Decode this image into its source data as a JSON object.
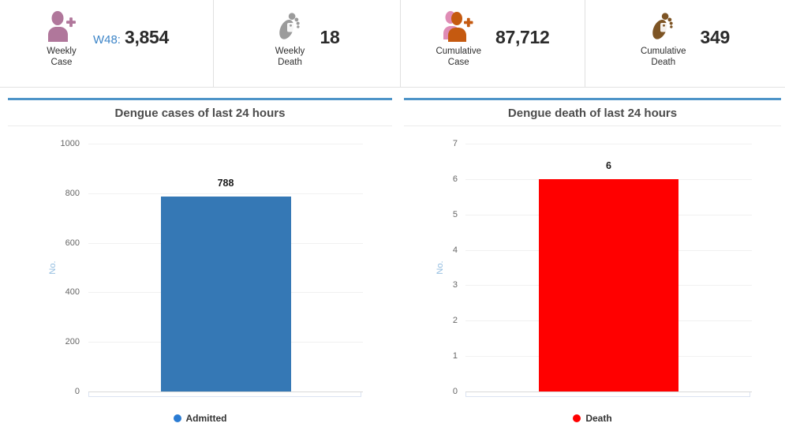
{
  "stat_cards": [
    {
      "label_top": "Weekly",
      "label_bottom": "Case",
      "prefix": "W48:",
      "value": "3,854",
      "icon": "person-plus-icon",
      "icon_color": "#b0779b"
    },
    {
      "label_top": "Weekly",
      "label_bottom": "Death",
      "prefix": "",
      "value": "18",
      "icon": "foot-icon",
      "icon_color": "#9b9b9b"
    },
    {
      "label_top": "Cumulative",
      "label_bottom": "Case",
      "prefix": "",
      "value": "87,712",
      "icon": "person-plus-dual-icon",
      "icon_color": "#c55a10",
      "icon_color_secondary": "#df8cb5"
    },
    {
      "label_top": "Cumulative",
      "label_bottom": "Death",
      "prefix": "",
      "value": "349",
      "icon": "foot-icon",
      "icon_color": "#7d5424"
    }
  ],
  "theme": {
    "panel_accent": "#4e94c8",
    "prefix_color": "#3d85c8",
    "grid_color": "#f1f1f1",
    "tick_color": "#666666",
    "ylabel_color": "#8fbbdf"
  },
  "chart_data": [
    {
      "type": "bar",
      "title": "Dengue cases of last 24 hours",
      "ylabel": "No.",
      "categories": [
        "Admitted"
      ],
      "values": [
        788
      ],
      "ylim": [
        0,
        1000
      ],
      "ytick_step": 200,
      "bar_color": "#3578b5",
      "grid": true,
      "legend_position": "bottom",
      "legend": [
        {
          "label": "Admitted",
          "color": "#2b7cd3"
        }
      ]
    },
    {
      "type": "bar",
      "title": "Dengue death of last 24 hours",
      "ylabel": "No.",
      "categories": [
        "Death"
      ],
      "values": [
        6
      ],
      "ylim": [
        0,
        7
      ],
      "ytick_step": 1,
      "bar_color": "#ff0000",
      "grid": true,
      "legend_position": "bottom",
      "legend": [
        {
          "label": "Death",
          "color": "#ff0000"
        }
      ]
    }
  ]
}
